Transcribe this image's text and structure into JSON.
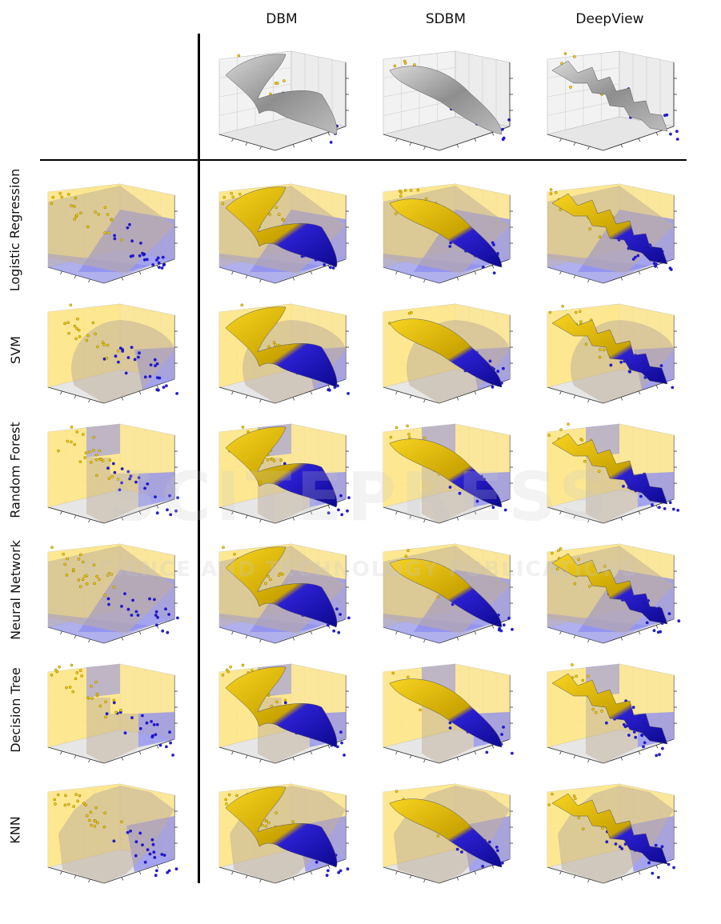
{
  "columns": [
    "DBM",
    "SDBM",
    "DeepView"
  ],
  "rows": [
    "Logistic Regression",
    "SVM",
    "Random Forest",
    "Neural Network",
    "Decision Tree",
    "KNN"
  ],
  "colors": {
    "class_a": "#f2c900",
    "class_b": "#1a12c8",
    "surface_gray": "#9a9a9a",
    "bg_yellow": "#ffe680",
    "bg_blue": "#8c8cf0",
    "plane_tan": "#bfae9a"
  },
  "watermark": {
    "line1": "SCITEPRESS",
    "line2": "SCIENCE AND TECHNOLOGY PUBLICATIONS"
  }
}
